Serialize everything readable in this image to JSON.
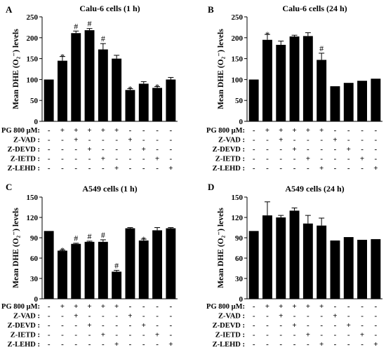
{
  "row_labels": [
    "PG 800 μM:",
    "Z-VAD :",
    "Z-DEVD :",
    "Z-IETD :",
    "Z-LEHD :"
  ],
  "conditions": [
    [
      "-",
      "+",
      "+",
      "+",
      "+",
      "+",
      "-",
      "-",
      "-",
      "-"
    ],
    [
      "-",
      "-",
      "+",
      "-",
      "-",
      "-",
      "+",
      "-",
      "-",
      "-"
    ],
    [
      "-",
      "-",
      "-",
      "+",
      "-",
      "-",
      "-",
      "+",
      "-",
      "-"
    ],
    [
      "-",
      "-",
      "-",
      "-",
      "+",
      "-",
      "-",
      "-",
      "+",
      "-"
    ],
    [
      "-",
      "-",
      "-",
      "-",
      "-",
      "+",
      "-",
      "-",
      "-",
      "+"
    ]
  ],
  "chart_data": [
    {
      "panel": "A",
      "type": "bar",
      "title": "Calu-6 cells (1 h)",
      "ylabel": "Mean DHE (O₂⁻) levels",
      "ylim": [
        0,
        250
      ],
      "yticks": [
        "0",
        "50",
        "100",
        "150",
        "200",
        "250"
      ],
      "values": [
        100,
        145,
        211,
        218,
        172,
        150,
        75,
        90,
        80,
        100
      ],
      "errors": [
        0,
        10,
        5,
        4,
        14,
        8,
        3,
        5,
        3,
        5
      ],
      "markers": [
        "",
        "*",
        "#",
        "#",
        "#",
        "",
        "*",
        "",
        "*",
        ""
      ]
    },
    {
      "panel": "B",
      "type": "bar",
      "title": "Calu-6 cells (24 h)",
      "ylabel": "Mean DHE (O₂⁻) levels",
      "ylim": [
        0,
        250
      ],
      "yticks": [
        "0",
        "50",
        "100",
        "150",
        "200",
        "250"
      ],
      "values": [
        100,
        195,
        183,
        203,
        204,
        147,
        84,
        92,
        97,
        102
      ],
      "errors": [
        0,
        13,
        9,
        3,
        8,
        16,
        0,
        0,
        0,
        0
      ],
      "markers": [
        "",
        "*",
        "",
        "",
        "",
        "#",
        "",
        "",
        "",
        ""
      ]
    },
    {
      "panel": "C",
      "type": "bar",
      "title": "A549 cells (1 h)",
      "ylabel": "Mean DHE (O₂⁻) levels",
      "ylim": [
        0,
        150
      ],
      "yticks": [
        "0",
        "30",
        "60",
        "90",
        "120",
        "150"
      ],
      "values": [
        100,
        71,
        81,
        84,
        84,
        40,
        104,
        86,
        101,
        104
      ],
      "errors": [
        0,
        1,
        1,
        1,
        3,
        2,
        1,
        2,
        4,
        1
      ],
      "markers": [
        "",
        "*",
        "#",
        "#",
        "#",
        "#",
        "",
        "*",
        "",
        ""
      ]
    },
    {
      "panel": "D",
      "type": "bar",
      "title": "A549 cells (24 h)",
      "ylabel": "Mean DHE (O₂⁻) levels",
      "ylim": [
        0,
        150
      ],
      "yticks": [
        "0",
        "30",
        "60",
        "90",
        "120",
        "150"
      ],
      "values": [
        100,
        123,
        120,
        130,
        111,
        108,
        86,
        91,
        87,
        88
      ],
      "errors": [
        0,
        20,
        3,
        4,
        12,
        11,
        0,
        0,
        0,
        0
      ],
      "markers": [
        "",
        "",
        "",
        "",
        "",
        "",
        "",
        "",
        "",
        ""
      ]
    }
  ]
}
